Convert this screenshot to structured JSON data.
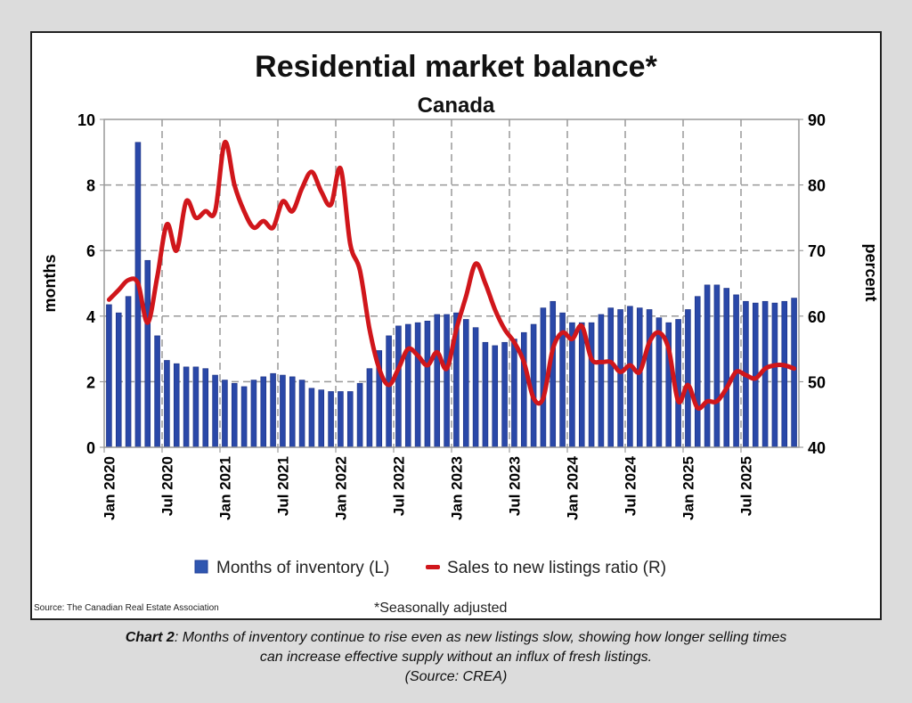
{
  "chart_data": {
    "type": "bar+line",
    "title": "Residential market balance*",
    "subtitle": "Canada",
    "ylabel_left": "months",
    "ylabel_right": "percent",
    "ylim_left": [
      0,
      10
    ],
    "ylim_right": [
      40,
      90
    ],
    "yticks_left": [
      "0",
      "2",
      "4",
      "6",
      "8",
      "10"
    ],
    "yticks_right": [
      "40",
      "50",
      "60",
      "70",
      "80",
      "90"
    ],
    "xticks": [
      "Jan 2020",
      "Jul 2020",
      "Jan 2021",
      "Jul 2021",
      "Jan 2022",
      "Jul 2022",
      "Jan 2023",
      "Jul 2023",
      "Jan 2024",
      "Jul 2024",
      "Jan 2025",
      "Jul 2025"
    ],
    "x_range": [
      "Jan 2020",
      "Dec 2025"
    ],
    "frequency": "monthly",
    "grid": true,
    "legend_placement": "bottom",
    "series": [
      {
        "name": "Months of inventory (L)",
        "type": "bar",
        "axis": "left",
        "color": "#1f3d99",
        "values": [
          4.35,
          4.1,
          4.6,
          9.3,
          5.7,
          3.4,
          2.65,
          2.55,
          2.45,
          2.45,
          2.4,
          2.2,
          2.05,
          1.95,
          1.85,
          2.05,
          2.15,
          2.25,
          2.2,
          2.15,
          2.05,
          1.8,
          1.75,
          1.7,
          1.7,
          1.7,
          1.95,
          2.4,
          2.95,
          3.4,
          3.7,
          3.75,
          3.8,
          3.85,
          4.05,
          4.05,
          4.1,
          3.9,
          3.65,
          3.2,
          3.1,
          3.2,
          3.3,
          3.5,
          3.75,
          4.25,
          4.45,
          4.1,
          3.8,
          3.8,
          3.8,
          4.05,
          4.25,
          4.2,
          4.3,
          4.25,
          4.2,
          3.95,
          3.8,
          3.9,
          4.2,
          4.6,
          4.95,
          4.95,
          4.85,
          4.65,
          4.45,
          4.4,
          4.45,
          4.4,
          4.45,
          4.55
        ]
      },
      {
        "name": "Sales to new listings ratio (R)",
        "type": "line",
        "axis": "right",
        "color": "#d0161b",
        "values": [
          62.5,
          64,
          65.5,
          65,
          59,
          66,
          74,
          70,
          77.5,
          75,
          76,
          76,
          86.5,
          80,
          76,
          73.5,
          74.5,
          73.5,
          77.5,
          76,
          79.5,
          82,
          79,
          77,
          82.5,
          71,
          67,
          58,
          52,
          49.5,
          52,
          55,
          54,
          52.5,
          54.5,
          52,
          58,
          63,
          68,
          65,
          61,
          58,
          56,
          53,
          47.5,
          47.5,
          55,
          57.5,
          56.5,
          58.5,
          53.5,
          53,
          53,
          51.5,
          52.5,
          51.5,
          56,
          57.5,
          55,
          47,
          49.5,
          46,
          47,
          47,
          49,
          51.5,
          51,
          50.5,
          52,
          52.5,
          52.5,
          52
        ]
      }
    ],
    "note": "*Seasonally adjusted",
    "source": "Source: The Canadian Real Estate Association"
  },
  "caption": {
    "label": "Chart 2",
    "text": ": Months of inventory continue to rise even as new listings slow, showing how longer selling times",
    "text2": "can increase effective supply without an influx of fresh listings.",
    "source": "(Source: CREA)"
  }
}
